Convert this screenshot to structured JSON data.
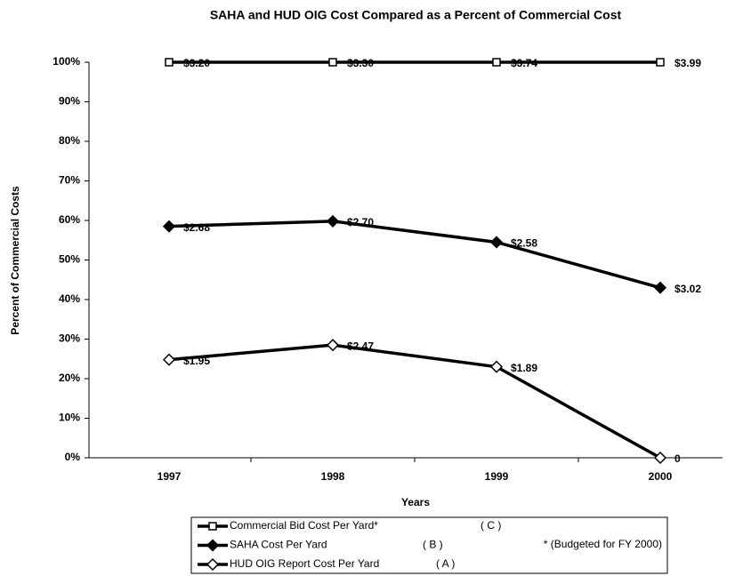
{
  "chart_data": {
    "type": "line",
    "title": "SAHA and HUD OIG Cost Compared as a Percent of Commercial Cost",
    "y_label": "Percent of Commercial Costs",
    "x_label": "Years",
    "categories": [
      "1997",
      "1998",
      "1999",
      "2000"
    ],
    "ylim": [
      0,
      100
    ],
    "yticks": [
      {
        "value": 0,
        "label": "0%"
      },
      {
        "value": 10,
        "label": "10%"
      },
      {
        "value": 20,
        "label": "20%"
      },
      {
        "value": 30,
        "label": "30%"
      },
      {
        "value": 40,
        "label": "40%"
      },
      {
        "value": 50,
        "label": "50%"
      },
      {
        "value": 60,
        "label": "60%"
      },
      {
        "value": 70,
        "label": "70%"
      },
      {
        "value": 80,
        "label": "80%"
      },
      {
        "value": 90,
        "label": "90%"
      },
      {
        "value": 100,
        "label": "100%"
      }
    ],
    "series": [
      {
        "name": "Commercial Bid Cost Per Yard*",
        "code": "( C )",
        "color": "#000000",
        "marker": "square",
        "values": [
          100,
          100,
          100,
          100
        ],
        "cost_labels": [
          "$3.20",
          "$3.30",
          "$3.74",
          "$3.99"
        ]
      },
      {
        "name": "SAHA Cost Per Yard",
        "code": "( B )",
        "color": "#000000",
        "marker": "diamond-filled",
        "values": [
          58.5,
          59.8,
          54.5,
          43
        ],
        "cost_labels": [
          "$2.68",
          "$2.70",
          "$2.58",
          "$3.02"
        ]
      },
      {
        "name": "HUD OIG Report Cost Per Yard",
        "code": "( A )",
        "color": "#000000",
        "marker": "diamond-open",
        "values": [
          24.8,
          28.5,
          23,
          0
        ],
        "cost_labels": [
          "$1.95",
          "$2.47",
          "$1.89",
          "0"
        ]
      }
    ],
    "legend_note": "* (Budgeted for FY 2000)"
  }
}
